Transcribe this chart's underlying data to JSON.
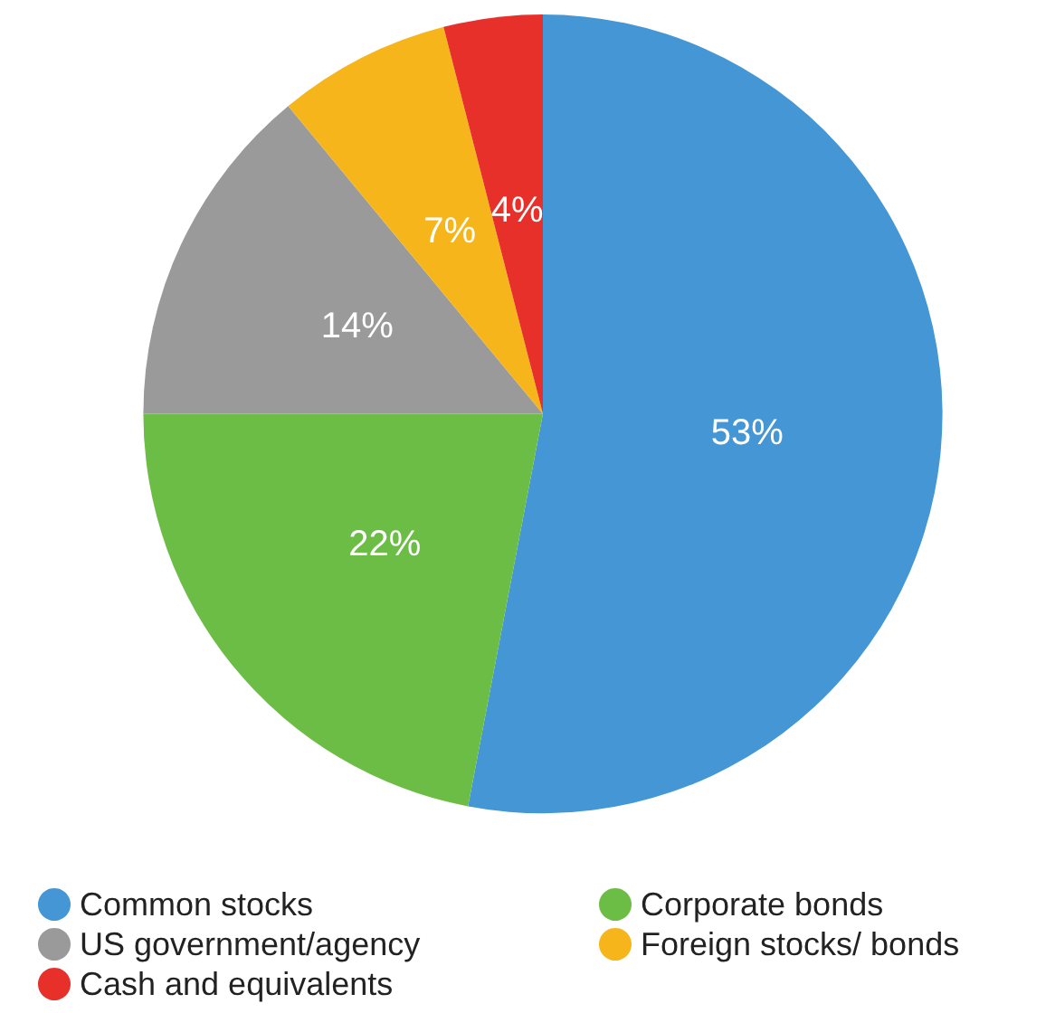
{
  "chart_data": {
    "type": "pie",
    "categories": [
      "Common stocks",
      "Corporate bonds",
      "US government/agency",
      "Foreign stocks/ bonds",
      "Cash and equivalents"
    ],
    "values": [
      53,
      22,
      14,
      7,
      4
    ],
    "colors": [
      "#4596d4",
      "#6cbd45",
      "#9a9a9a",
      "#f7b51c",
      "#e8302a"
    ],
    "value_labels": [
      "53%",
      "22%",
      "14%",
      "7%",
      "4%"
    ],
    "legend": "bottom"
  }
}
